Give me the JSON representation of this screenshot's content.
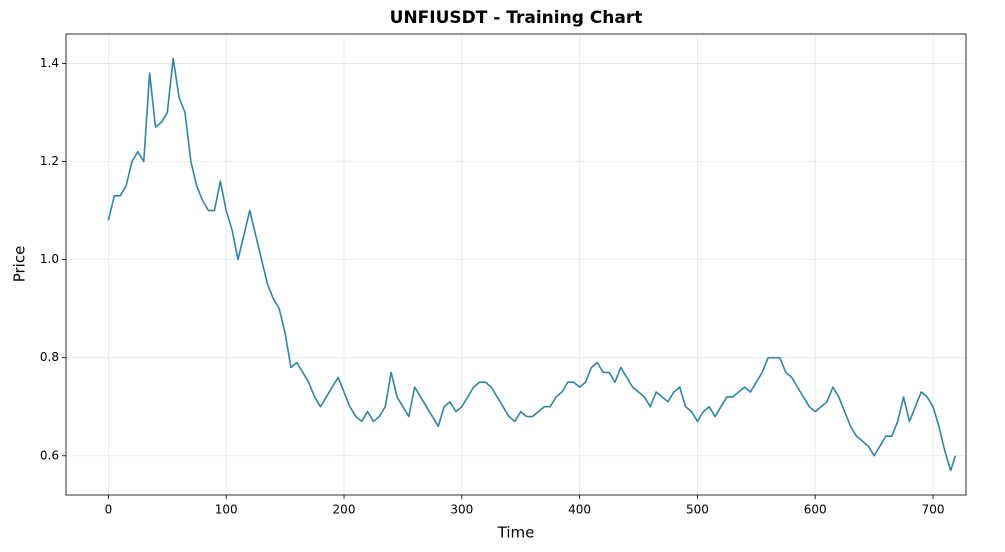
{
  "chart_data": {
    "type": "line",
    "title": "UNFIUSDT - Training Chart",
    "xlabel": "Time",
    "ylabel": "Price",
    "color": "#2b86a8",
    "grid": true,
    "xlim": [
      -36,
      728
    ],
    "ylim": [
      0.52,
      1.46
    ],
    "xticks": [
      0,
      100,
      200,
      300,
      400,
      500,
      600,
      700
    ],
    "yticks": [
      0.6,
      0.8,
      {
        "value": 1,
        "label": "1.0"
      },
      1.2,
      1.4
    ],
    "x": [
      0,
      5,
      10,
      15,
      20,
      25,
      30,
      35,
      40,
      45,
      50,
      55,
      60,
      65,
      70,
      75,
      80,
      85,
      90,
      95,
      100,
      105,
      110,
      115,
      120,
      125,
      130,
      135,
      140,
      145,
      150,
      155,
      160,
      165,
      170,
      175,
      180,
      185,
      190,
      195,
      200,
      205,
      210,
      215,
      220,
      225,
      230,
      235,
      240,
      245,
      250,
      255,
      260,
      265,
      270,
      275,
      280,
      285,
      290,
      295,
      300,
      305,
      310,
      315,
      320,
      325,
      330,
      335,
      340,
      345,
      350,
      355,
      360,
      365,
      370,
      375,
      380,
      385,
      390,
      395,
      400,
      405,
      410,
      415,
      420,
      425,
      430,
      435,
      440,
      445,
      450,
      455,
      460,
      465,
      470,
      475,
      480,
      485,
      490,
      495,
      500,
      505,
      510,
      515,
      520,
      525,
      530,
      535,
      540,
      545,
      550,
      555,
      560,
      565,
      570,
      575,
      580,
      585,
      590,
      595,
      600,
      605,
      610,
      615,
      620,
      625,
      630,
      635,
      640,
      645,
      650,
      655,
      660,
      665,
      670,
      675,
      680,
      685,
      690,
      695,
      700,
      705,
      710,
      715,
      719
    ],
    "values": [
      1.08,
      1.13,
      1.13,
      1.15,
      1.2,
      1.22,
      1.2,
      1.38,
      1.27,
      1.28,
      1.3,
      1.41,
      1.33,
      1.3,
      1.2,
      1.15,
      1.12,
      1.1,
      1.1,
      1.16,
      1.1,
      1.06,
      1.0,
      1.05,
      1.1,
      1.05,
      1.0,
      0.95,
      0.92,
      0.9,
      0.85,
      0.78,
      0.79,
      0.77,
      0.75,
      0.72,
      0.7,
      0.72,
      0.74,
      0.76,
      0.73,
      0.7,
      0.68,
      0.67,
      0.69,
      0.67,
      0.68,
      0.7,
      0.77,
      0.72,
      0.7,
      0.68,
      0.74,
      0.72,
      0.7,
      0.68,
      0.66,
      0.7,
      0.71,
      0.69,
      0.7,
      0.72,
      0.74,
      0.75,
      0.75,
      0.74,
      0.72,
      0.7,
      0.68,
      0.67,
      0.69,
      0.68,
      0.68,
      0.69,
      0.7,
      0.7,
      0.72,
      0.73,
      0.75,
      0.75,
      0.74,
      0.75,
      0.78,
      0.79,
      0.77,
      0.77,
      0.75,
      0.78,
      0.76,
      0.74,
      0.73,
      0.72,
      0.7,
      0.73,
      0.72,
      0.71,
      0.73,
      0.74,
      0.7,
      0.69,
      0.67,
      0.69,
      0.7,
      0.68,
      0.7,
      0.72,
      0.72,
      0.73,
      0.74,
      0.73,
      0.75,
      0.77,
      0.8,
      0.8,
      0.8,
      0.77,
      0.76,
      0.74,
      0.72,
      0.7,
      0.69,
      0.7,
      0.71,
      0.74,
      0.72,
      0.69,
      0.66,
      0.64,
      0.63,
      0.62,
      0.6,
      0.62,
      0.64,
      0.64,
      0.67,
      0.72,
      0.67,
      0.7,
      0.73,
      0.72,
      0.7,
      0.66,
      0.61,
      0.57,
      0.6
    ]
  }
}
